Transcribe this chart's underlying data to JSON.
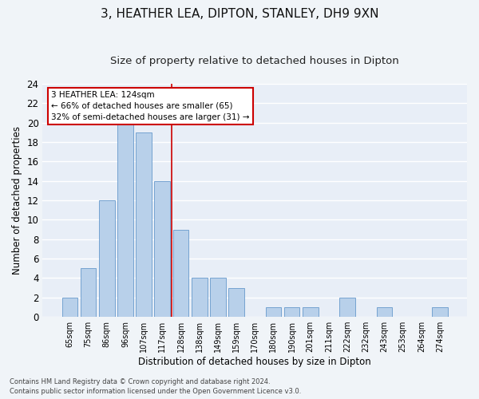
{
  "title1": "3, HEATHER LEA, DIPTON, STANLEY, DH9 9XN",
  "title2": "Size of property relative to detached houses in Dipton",
  "xlabel": "Distribution of detached houses by size in Dipton",
  "ylabel": "Number of detached properties",
  "categories": [
    "65sqm",
    "75sqm",
    "86sqm",
    "96sqm",
    "107sqm",
    "117sqm",
    "128sqm",
    "138sqm",
    "149sqm",
    "159sqm",
    "170sqm",
    "180sqm",
    "190sqm",
    "201sqm",
    "211sqm",
    "222sqm",
    "232sqm",
    "243sqm",
    "253sqm",
    "264sqm",
    "274sqm"
  ],
  "values": [
    2,
    5,
    12,
    20,
    19,
    14,
    9,
    4,
    4,
    3,
    0,
    1,
    1,
    1,
    0,
    2,
    0,
    1,
    0,
    0,
    1
  ],
  "bar_color": "#b8d0ea",
  "bar_edge_color": "#6699cc",
  "vline_color": "#cc0000",
  "annotation_text": "3 HEATHER LEA: 124sqm\n← 66% of detached houses are smaller (65)\n32% of semi-detached houses are larger (31) →",
  "annotation_box_color": "#ffffff",
  "annotation_box_edge_color": "#cc0000",
  "ylim": [
    0,
    24
  ],
  "yticks": [
    0,
    2,
    4,
    6,
    8,
    10,
    12,
    14,
    16,
    18,
    20,
    22,
    24
  ],
  "footer1": "Contains HM Land Registry data © Crown copyright and database right 2024.",
  "footer2": "Contains public sector information licensed under the Open Government Licence v3.0.",
  "bg_color": "#e8eef7",
  "grid_color": "#ffffff",
  "title1_fontsize": 11,
  "title2_fontsize": 9.5
}
